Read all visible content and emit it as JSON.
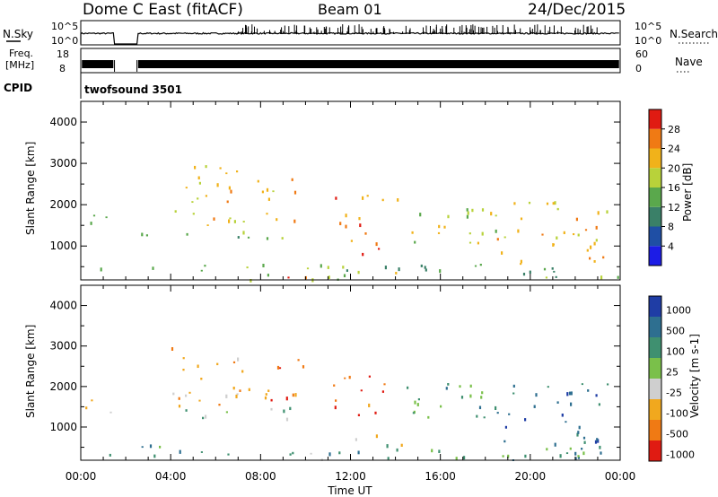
{
  "header": {
    "station": "Dome C East (fitACF)",
    "beam": "Beam 01",
    "date": "24/Dec/2015"
  },
  "noise_panel": {
    "left_label": "N.Sky",
    "left_ticks": [
      "10^5",
      "10^0"
    ],
    "right_label": "N.Search",
    "right_ticks": [
      "10^5",
      "10^0"
    ]
  },
  "freq_panel": {
    "left_label_1": "Freq.",
    "left_label_2": "[MHz]",
    "left_ticks": [
      "18",
      "8"
    ],
    "right_label": "Nave",
    "right_ticks": [
      "60",
      "0"
    ]
  },
  "cpid_panel": {
    "label": "CPID",
    "value": "twofsound 3501"
  },
  "power_panel": {
    "ylabel": "Slant Range [km]",
    "yticks": [
      "4000",
      "3000",
      "2000",
      "1000"
    ],
    "colorbar_label": "Power [dB]",
    "colorbar_ticks": [
      "28",
      "24",
      "20",
      "16",
      "12",
      "8",
      "4"
    ],
    "colors": [
      "#1c1ce6",
      "#1f4fa5",
      "#3a8068",
      "#5aa84c",
      "#b8d23a",
      "#f1b21a",
      "#f07a14",
      "#e01b12"
    ]
  },
  "velocity_panel": {
    "ylabel": "Slant Range [km]",
    "yticks": [
      "4000",
      "3000",
      "2000",
      "1000"
    ],
    "colorbar_label": "Velocity [m s-1]",
    "colorbar_ticks": [
      "1000",
      "500",
      "100",
      "25",
      "-25",
      "-100",
      "-500",
      "-1000"
    ],
    "colors": [
      "#1f3da5",
      "#2e6f90",
      "#3f9070",
      "#7ac04a",
      "#cfcfcf",
      "#f1a81e",
      "#f07a14",
      "#e01b12"
    ]
  },
  "xaxis": {
    "label": "Time UT",
    "ticks": [
      "00:00",
      "04:00",
      "08:00",
      "12:00",
      "16:00",
      "20:00",
      "00:00"
    ]
  },
  "chart_data": {
    "type": "heatmap",
    "x_range_hours": [
      0,
      24
    ],
    "y_range_km": [
      180,
      4500
    ],
    "data_gap_hours": [
      1.5,
      2.5
    ],
    "regions": [
      {
        "t0": 0.2,
        "t1": 1.4,
        "r0": 1300,
        "r1": 1900,
        "power": 12,
        "velocity": -25
      },
      {
        "t0": 0.2,
        "t1": 1.4,
        "r0": 200,
        "r1": 500,
        "power": 16,
        "velocity": 100
      },
      {
        "t0": 2.6,
        "t1": 9.5,
        "r0": 1200,
        "r1": 1500,
        "power": 10,
        "velocity": 25
      },
      {
        "t0": 4.0,
        "t1": 7.0,
        "r0": 1500,
        "r1": 3000,
        "power": 20,
        "velocity": -100
      },
      {
        "t0": 6.5,
        "t1": 10.0,
        "r0": 1600,
        "r1": 2700,
        "power": 20,
        "velocity": -500
      },
      {
        "t0": 9.0,
        "t1": 11.2,
        "r0": 200,
        "r1": 400,
        "power": 28,
        "velocity": -25
      },
      {
        "t0": 11.2,
        "t1": 13.5,
        "r0": 1000,
        "r1": 2300,
        "power": 22,
        "velocity": -500
      },
      {
        "t0": 11.5,
        "t1": 13.5,
        "r0": 700,
        "r1": 1000,
        "power": 28,
        "velocity": -100
      },
      {
        "t0": 13.8,
        "t1": 14.5,
        "r0": 350,
        "r1": 650,
        "power": 22,
        "velocity": -100
      },
      {
        "t0": 14.0,
        "t1": 18.5,
        "r0": 1100,
        "r1": 2200,
        "power": 16,
        "velocity": 100
      },
      {
        "t0": 18.5,
        "t1": 23.5,
        "r0": 500,
        "r1": 2100,
        "power": 18,
        "velocity": 500
      },
      {
        "t0": 2.6,
        "t1": 24.0,
        "r0": 200,
        "r1": 600,
        "power": 12,
        "velocity": 100
      }
    ]
  }
}
